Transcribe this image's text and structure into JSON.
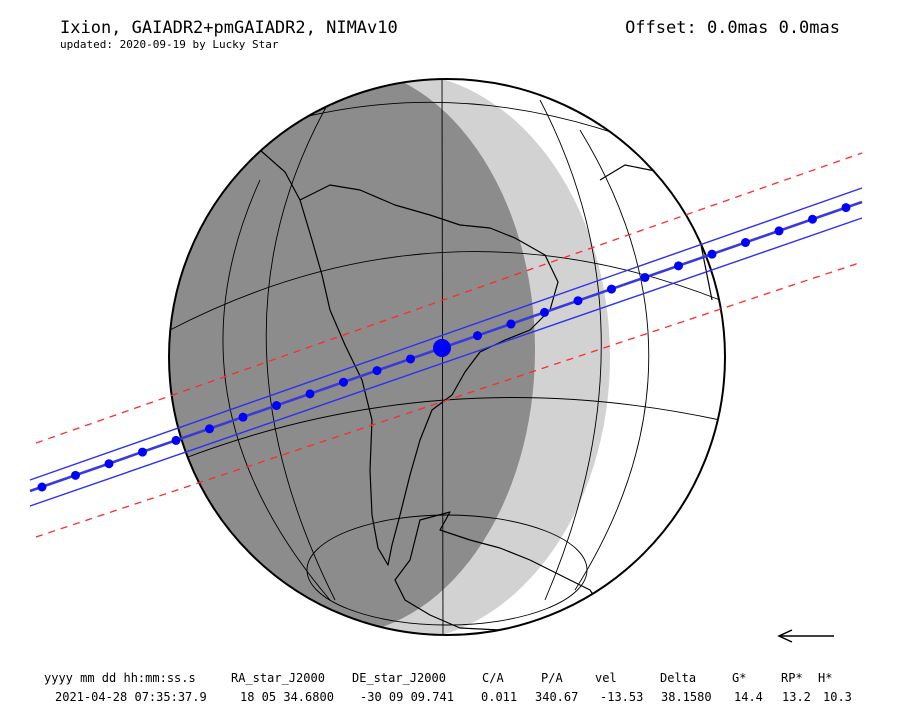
{
  "header": {
    "title": "Ixion, GAIADR2+pmGAIADR2, NIMAv10",
    "subtitle": "updated: 2020-09-19 by Lucky Star",
    "offset": "Offset: 0.0mas 0.0mas"
  },
  "colors": {
    "night": "#8c8c8c",
    "twilight": "#d2d2d2",
    "day": "#ffffff",
    "path_center": "#3a3ad8",
    "path_limits": "#2f2ff0",
    "error_limits": "#ff2a2a",
    "dots": "#0000ff"
  },
  "direction_icon": "left-arrow-icon",
  "table": {
    "headers": [
      "yyyy mm dd hh:mm:ss.s",
      "RA_star_J2000",
      "DE_star_J2000",
      "C/A",
      "P/A",
      "vel",
      "Delta",
      "G*",
      "RP*",
      "H*"
    ],
    "values": [
      "2021-04-28 07:35:37.9",
      "18 05 34.6800",
      "-30 09 09.741",
      "0.011",
      "340.67",
      "-13.53",
      "38.1580",
      "14.4",
      "13.2",
      "10.3"
    ]
  }
}
